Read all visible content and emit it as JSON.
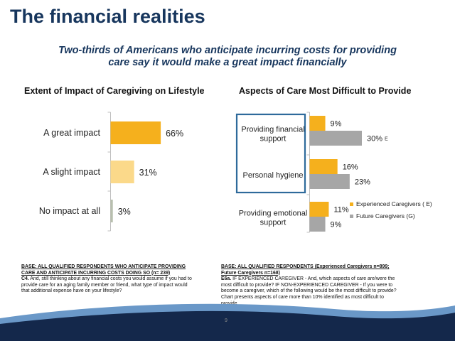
{
  "title": "The financial realities",
  "subtitle_line1": "Two-thirds of Americans who anticipate incurring costs for providing",
  "subtitle_line2": "care say it would make a great impact financially",
  "colors": {
    "title": "#17365d",
    "gold": "#f5b01d",
    "light_gold": "#fbd98a",
    "light_gray_bar": "#b8bfae",
    "gray": "#a6a6a6",
    "highlight_box": "#2e6a9b",
    "footer_navy": "#14284b",
    "footer_blue": "#6a98c8"
  },
  "chart_data": [
    {
      "type": "bar",
      "orientation": "horizontal",
      "title": "Extent of Impact of Caregiving on Lifestyle",
      "categories": [
        "A great impact",
        "A slight impact",
        "No impact at all"
      ],
      "values": [
        66,
        31,
        3
      ],
      "value_labels": [
        "66%",
        "31%",
        "3%"
      ],
      "xlim": [
        0,
        100
      ],
      "grid": false
    },
    {
      "type": "bar",
      "orientation": "horizontal",
      "title": "Aspects of Care Most Difficult to Provide",
      "categories": [
        "Providing financial support",
        "Personal hygiene",
        "Providing emotional support"
      ],
      "category_lines": [
        [
          "Providing financial",
          "support"
        ],
        [
          "Personal hygiene"
        ],
        [
          "Providing emotional",
          "support"
        ]
      ],
      "series": [
        {
          "name": "Experienced Caregivers ( E)",
          "values": [
            9,
            16,
            11
          ],
          "labels": [
            "9%",
            "16%",
            "11%"
          ]
        },
        {
          "name": "Future Caregivers (G)",
          "values": [
            30,
            23,
            9
          ],
          "labels": [
            "30%",
            "23%",
            "9%"
          ]
        }
      ],
      "annotations": [
        {
          "series": 1,
          "category": 0,
          "text": "E"
        }
      ],
      "highlighted_categories": [
        "Providing financial support",
        "Personal hygiene"
      ],
      "legend_position": "right",
      "xlim": [
        0,
        100
      ],
      "grid": false
    }
  ],
  "left_base": {
    "heading": "BASE: ALL QUALIFIED RESPONDENTS WHO ANTICIPATE PROVIDING CARE AND ANTICIPATE INCURRING COSTS DOING SO (n= 239)",
    "qid": "C4.",
    "question": " And, still thinking about any financial costs you would assume if you had to provide care for an aging family member or friend, what type of impact would that additional expense have on your lifestyle?"
  },
  "right_base": {
    "heading": "BASE: ALL QUALIFIED RESPONDENTS (Experienced Caregivers n=899; Future Caregivers n=168)",
    "qid": "E6a.",
    "question": " IF EXPERIENCED CAREGIVER - And, which aspects of care are/were the most difficult to provide? IF NON-EXPERIENCED CAREGIVER - If you were to become a caregiver, which of the following would be the most difficult to provide?",
    "note": "Chart presents aspects of care more than 10% identified as most difficult to provide"
  },
  "page_number": "9"
}
